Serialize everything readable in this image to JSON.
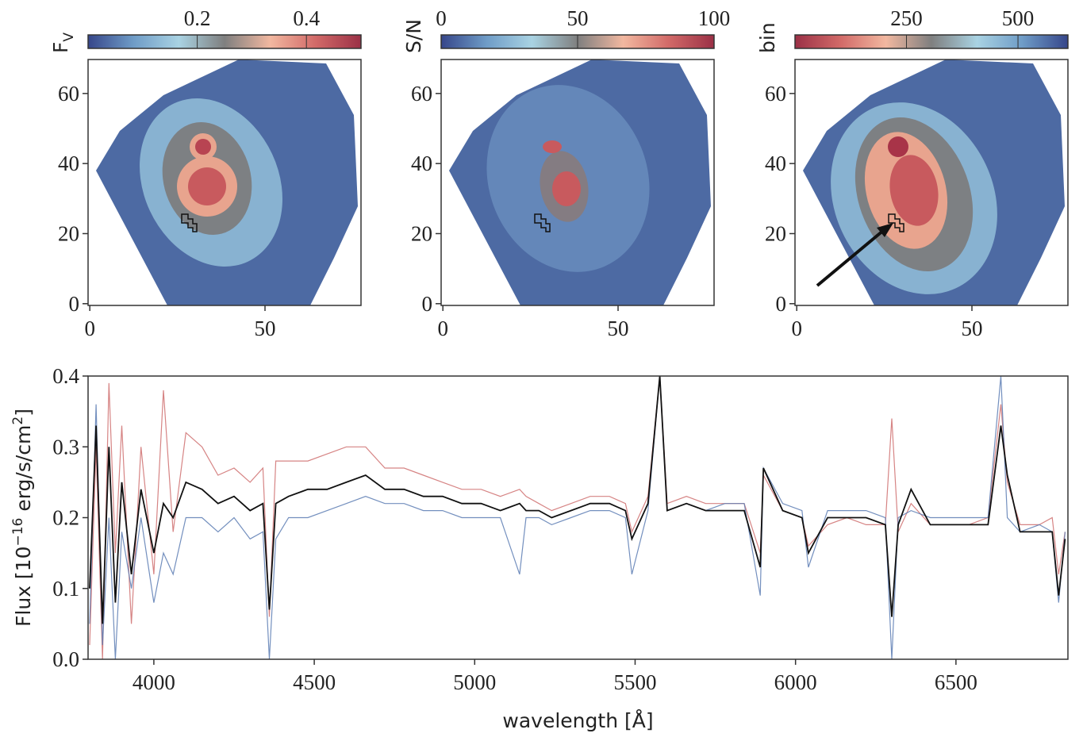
{
  "chart_data": [
    {
      "type": "map",
      "colorbar_label": "F",
      "colorbar_label_sub": "V",
      "clim": [
        0,
        0.5
      ],
      "cticks": [
        0.2,
        0.4
      ],
      "colormap": [
        "#36468a",
        "#6f9cc7",
        "#a9d3e3",
        "#7f7f7f",
        "#f2b8a0",
        "#d26a68",
        "#9b3046"
      ],
      "xlim": [
        -0.5,
        77.4
      ],
      "ylim": [
        -0.5,
        69.7
      ],
      "xticks": [
        0,
        50
      ],
      "yticks": [
        0,
        20,
        40,
        60
      ]
    },
    {
      "type": "map",
      "colorbar_label": "S/N",
      "clim": [
        0,
        100
      ],
      "cticks": [
        0,
        50,
        100
      ],
      "colormap": [
        "#36468a",
        "#6f9cc7",
        "#a9d3e3",
        "#7f7f7f",
        "#f2b8a0",
        "#d26a68",
        "#9b3046"
      ],
      "xlim": [
        -0.5,
        77.4
      ],
      "ylim": [
        -0.5,
        69.7
      ],
      "xticks": [
        0,
        50
      ],
      "yticks": [
        0,
        20,
        40,
        60
      ]
    },
    {
      "type": "map",
      "colorbar_label": "bin",
      "clim": [
        0,
        612
      ],
      "cticks": [
        250,
        500
      ],
      "colormap": [
        "#9b3046",
        "#d26a68",
        "#f2b8a0",
        "#7f7f7f",
        "#a9d3e3",
        "#6f9cc7",
        "#36468a"
      ],
      "xlim": [
        -0.5,
        77.4
      ],
      "ylim": [
        -0.5,
        69.7
      ],
      "xticks": [
        0,
        50
      ],
      "yticks": [
        0,
        20,
        40,
        60
      ]
    },
    {
      "type": "line",
      "xlabel": "wavelength [Å]",
      "ylabel": [
        "Flux [10",
        "−16",
        " erg/s/cm",
        "2",
        "]"
      ],
      "xlim": [
        3795,
        6849
      ],
      "ylim": [
        0,
        0.4
      ],
      "xticks": [
        4000,
        4500,
        5000,
        5500,
        6000,
        6500
      ],
      "yticks": [
        {
          "value": 0,
          "label": "0.0"
        },
        0.1,
        0.2,
        0.3,
        0.4
      ],
      "x": [
        3800,
        3820,
        3840,
        3860,
        3880,
        3900,
        3930,
        3960,
        4000,
        4030,
        4060,
        4100,
        4150,
        4200,
        4250,
        4300,
        4340,
        4360,
        4380,
        4420,
        4480,
        4540,
        4600,
        4660,
        4720,
        4780,
        4840,
        4900,
        4960,
        5020,
        5080,
        5140,
        5160,
        5200,
        5240,
        5300,
        5360,
        5420,
        5470,
        5490,
        5540,
        5577,
        5600,
        5660,
        5720,
        5780,
        5840,
        5890,
        5900,
        5960,
        6020,
        6040,
        6100,
        6160,
        6220,
        6280,
        6300,
        6320,
        6360,
        6420,
        6480,
        6540,
        6600,
        6640,
        6660,
        6700,
        6760,
        6800,
        6820,
        6840
      ],
      "series": [
        {
          "color": "#cf6f6f",
          "values": [
            0.02,
            0.3,
            0.0,
            0.39,
            0.15,
            0.33,
            0.05,
            0.3,
            0.12,
            0.38,
            0.18,
            0.32,
            0.3,
            0.26,
            0.27,
            0.25,
            0.27,
            0.06,
            0.28,
            0.28,
            0.28,
            0.29,
            0.3,
            0.3,
            0.27,
            0.27,
            0.26,
            0.25,
            0.24,
            0.24,
            0.23,
            0.24,
            0.23,
            0.22,
            0.21,
            0.22,
            0.23,
            0.23,
            0.22,
            0.18,
            0.23,
            0.4,
            0.22,
            0.23,
            0.22,
            0.22,
            0.22,
            0.15,
            0.26,
            0.21,
            0.2,
            0.16,
            0.19,
            0.2,
            0.19,
            0.19,
            0.34,
            0.18,
            0.22,
            0.19,
            0.19,
            0.19,
            0.2,
            0.36,
            0.25,
            0.19,
            0.19,
            0.2,
            0.12,
            0.18
          ]
        },
        {
          "color": "#5b7bb3",
          "values": [
            0.05,
            0.36,
            0.02,
            0.2,
            0.0,
            0.18,
            0.1,
            0.2,
            0.08,
            0.15,
            0.12,
            0.2,
            0.2,
            0.18,
            0.2,
            0.17,
            0.18,
            0.0,
            0.17,
            0.2,
            0.2,
            0.21,
            0.22,
            0.23,
            0.22,
            0.22,
            0.21,
            0.21,
            0.2,
            0.2,
            0.2,
            0.12,
            0.2,
            0.2,
            0.19,
            0.2,
            0.21,
            0.21,
            0.2,
            0.12,
            0.21,
            0.4,
            0.21,
            0.22,
            0.21,
            0.22,
            0.22,
            0.09,
            0.27,
            0.22,
            0.21,
            0.13,
            0.21,
            0.21,
            0.21,
            0.2,
            0.0,
            0.2,
            0.21,
            0.2,
            0.2,
            0.2,
            0.2,
            0.4,
            0.2,
            0.18,
            0.19,
            0.18,
            0.08,
            0.18
          ]
        },
        {
          "color": "#111111",
          "values": [
            0.1,
            0.33,
            0.05,
            0.3,
            0.08,
            0.25,
            0.12,
            0.24,
            0.15,
            0.22,
            0.2,
            0.25,
            0.24,
            0.22,
            0.23,
            0.21,
            0.22,
            0.07,
            0.22,
            0.23,
            0.24,
            0.24,
            0.25,
            0.26,
            0.24,
            0.24,
            0.23,
            0.23,
            0.22,
            0.22,
            0.21,
            0.22,
            0.21,
            0.21,
            0.2,
            0.21,
            0.22,
            0.22,
            0.21,
            0.17,
            0.22,
            0.4,
            0.21,
            0.22,
            0.21,
            0.21,
            0.21,
            0.13,
            0.27,
            0.21,
            0.2,
            0.15,
            0.2,
            0.2,
            0.2,
            0.19,
            0.06,
            0.19,
            0.24,
            0.19,
            0.19,
            0.19,
            0.19,
            0.33,
            0.26,
            0.18,
            0.18,
            0.18,
            0.09,
            0.17
          ]
        }
      ]
    }
  ]
}
